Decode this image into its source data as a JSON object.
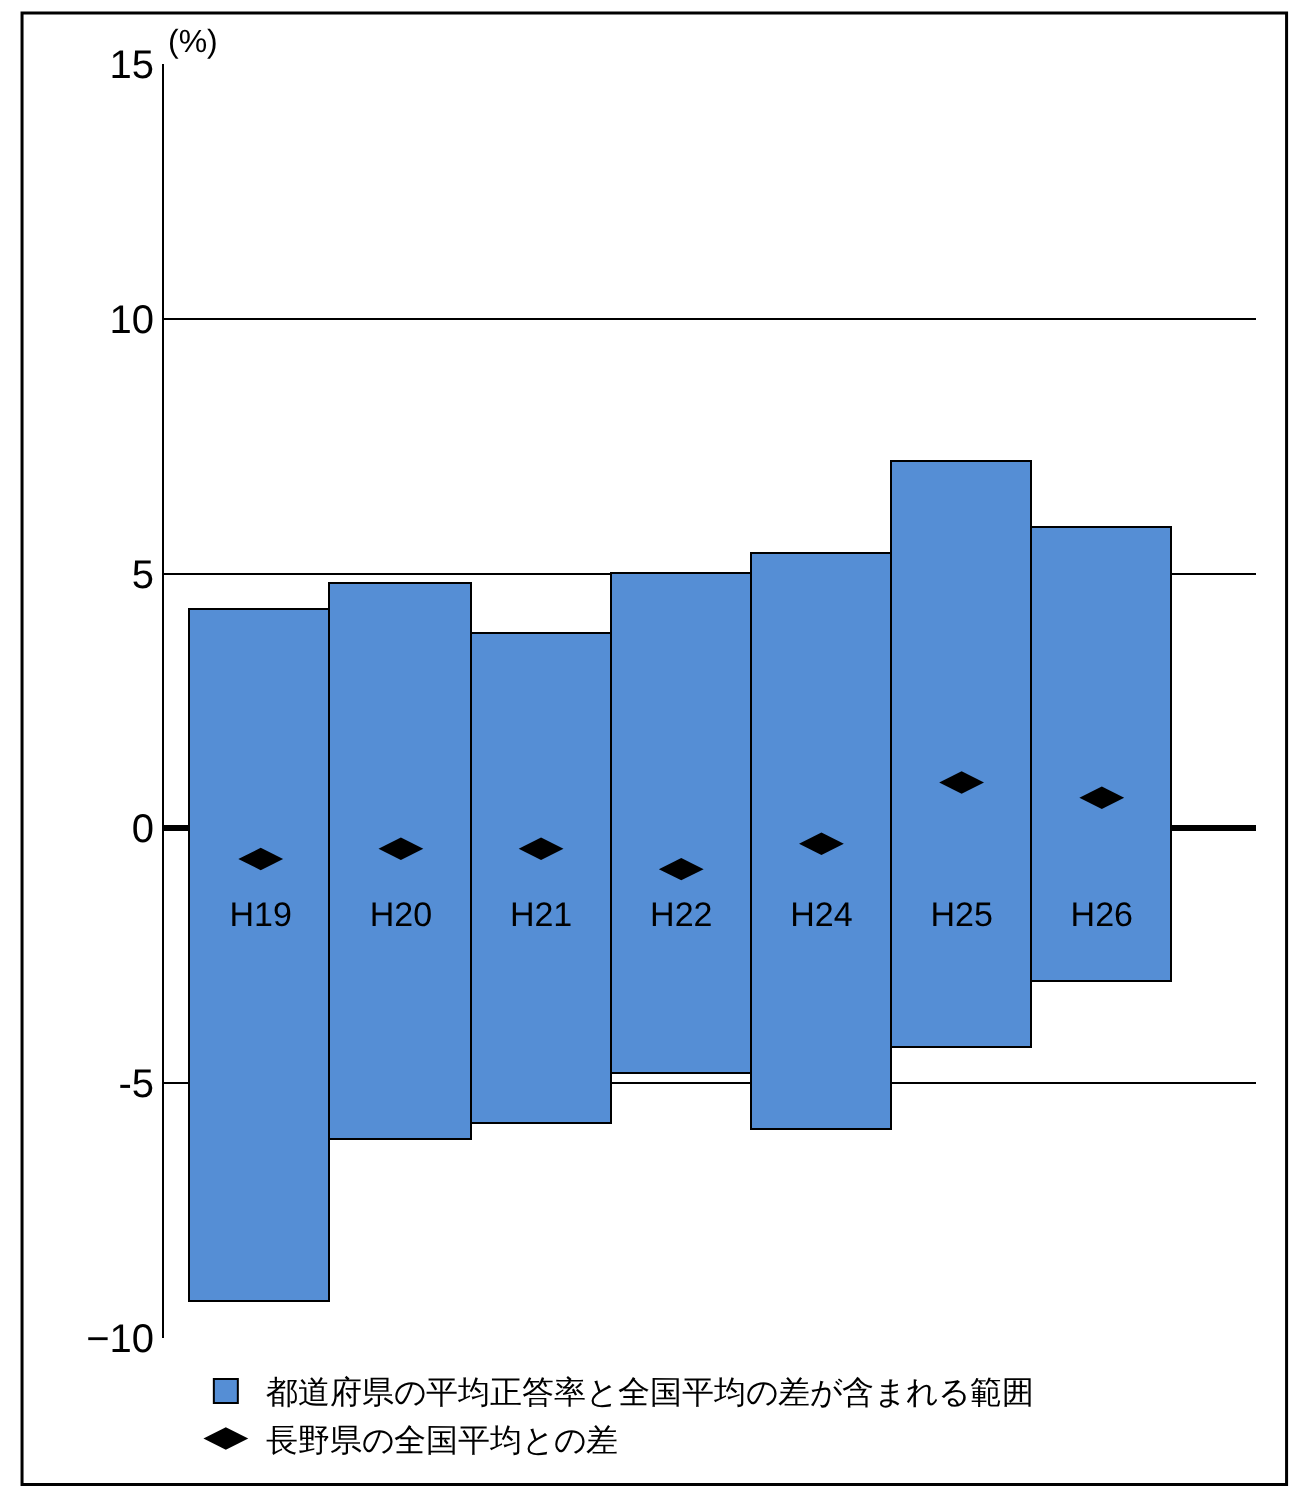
{
  "chart_data": {
    "type": "bar",
    "ylabel": "(%)",
    "categories": [
      "H19",
      "H20",
      "H21",
      "H22",
      "H24",
      "H25",
      "H26"
    ],
    "ylim": [
      -10,
      15
    ],
    "yticks": [
      {
        "value": -10,
        "label": "−10"
      },
      {
        "value": -5,
        "label": "-5"
      },
      0,
      5,
      10,
      15
    ],
    "grid": "y",
    "legend": "bottom left",
    "marker": "diamond",
    "series": [
      {
        "name": "都道府県の平均正答率と全国平均の差が含まれる範囲",
        "color": "#558ed5",
        "base": [
          -9.3,
          -6.1,
          -5.8,
          -4.8,
          -5.9,
          -4.3,
          -3.0
        ],
        "values": [
          13.6,
          10.9,
          9.6,
          9.8,
          11.3,
          11.5,
          8.9
        ]
      },
      {
        "name": "長野県の全国平均との差",
        "type": "scatter",
        "color": "#000000",
        "values": [
          -0.6,
          -0.4,
          -0.4,
          -0.8,
          -0.3,
          0.9,
          0.6
        ]
      }
    ]
  }
}
